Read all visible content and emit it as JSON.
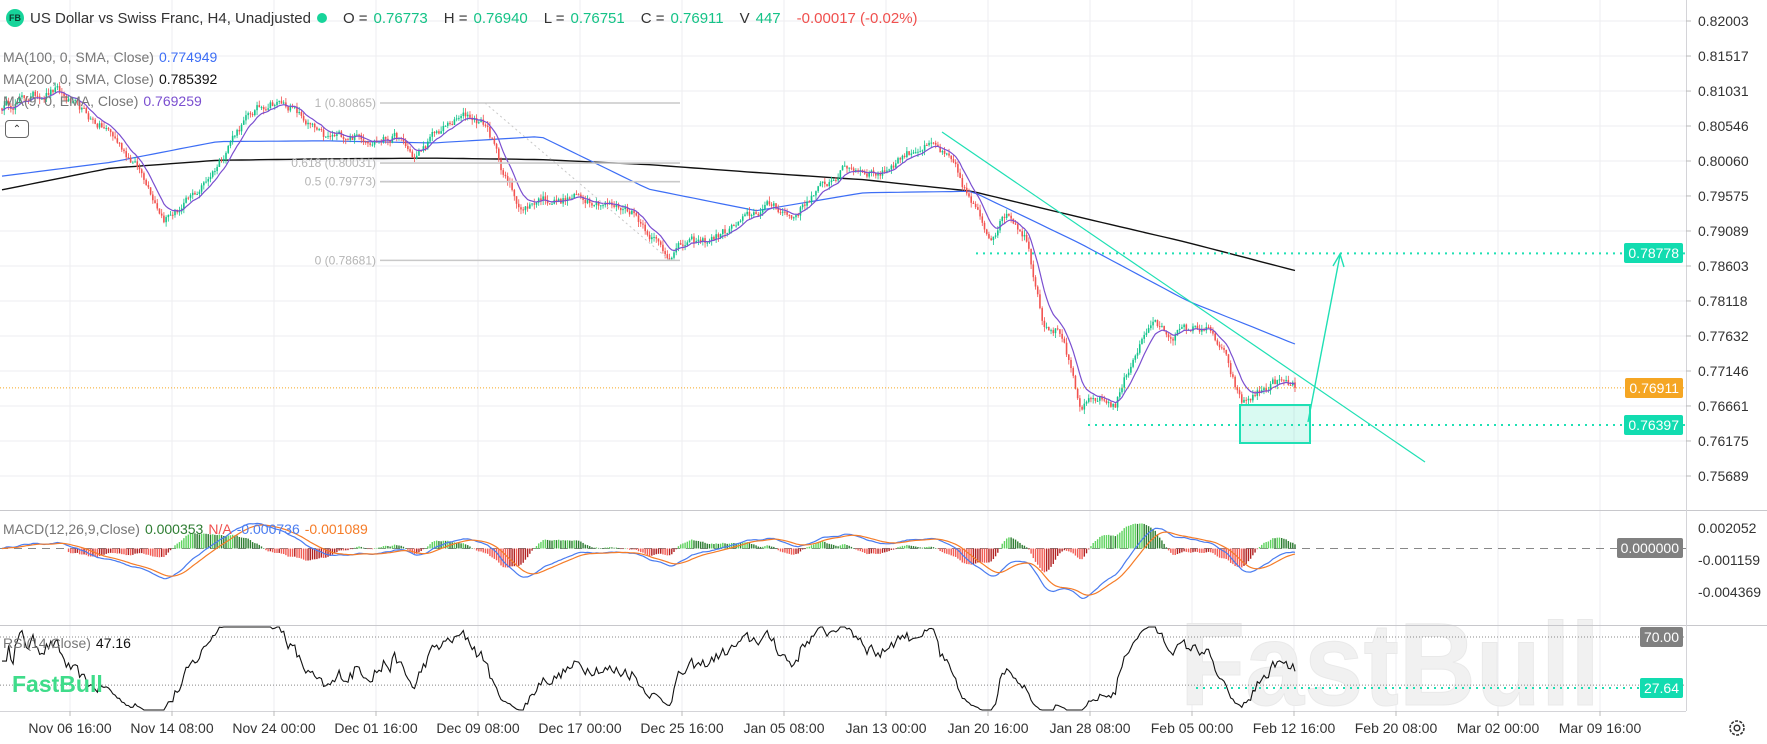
{
  "header": {
    "logo": "FB",
    "title": "US Dollar vs Swiss Franc, H4, Unadjusted",
    "open_label": "O =",
    "open": "0.76773",
    "high_label": "H =",
    "high": "0.76940",
    "low_label": "L =",
    "low": "0.76751",
    "close_label": "C =",
    "close": "0.76911",
    "volume_label": "V",
    "volume": "447",
    "change": "-0.00017 (-0.02%)"
  },
  "indicators": {
    "ma100": {
      "label": "MA(100, 0, SMA, Close)",
      "value": "0.774949",
      "color": "#3d6ef5"
    },
    "ma200": {
      "label": "MA(200, 0, SMA, Close)",
      "value": "0.785392",
      "color": "#111111"
    },
    "ema9": {
      "label": "MA(9, 0, EMA, Close)",
      "value": "0.769259",
      "color": "#7b4fd0"
    },
    "macd": {
      "label": "MACD(12,26,9,Close)",
      "hist": "0.000353",
      "na": "N/A",
      "macd": "-0.000736",
      "signal": "-0.001089"
    },
    "rsi": {
      "label": "RSI(14,Close)",
      "value": "47.16"
    }
  },
  "colors": {
    "up": "#12c48b",
    "down": "#f2524f",
    "annotation": "#1fe0b4",
    "last_price": "#f5a623",
    "macd_line": "#4a7cf0",
    "signal_line": "#f57c28"
  },
  "chart_data": {
    "type": "candlestick",
    "symbol": "USDCHF",
    "timeframe": "H4",
    "x_ticks": [
      "Nov 06 16:00",
      "Nov 14 08:00",
      "Nov 24 00:00",
      "Dec 01 16:00",
      "Dec 09 08:00",
      "Dec 17 00:00",
      "Dec 25 16:00",
      "Jan 05 08:00",
      "Jan 13 00:00",
      "Jan 20 16:00",
      "Jan 28 08:00",
      "Feb 05 00:00",
      "Feb 12 16:00",
      "Feb 20 08:00",
      "Mar 02 00:00",
      "Mar 09 16:00"
    ],
    "y_ticks": [
      "0.82003",
      "0.81517",
      "0.81031",
      "0.80546",
      "0.80060",
      "0.79575",
      "0.79089",
      "0.78603",
      "0.78118",
      "0.77632",
      "0.77146",
      "0.76661",
      "0.76175",
      "0.75689"
    ],
    "ylim": [
      0.7536,
      0.823
    ],
    "close_sampled": [
      0.8081,
      0.809,
      0.8098,
      0.8104,
      0.8083,
      0.8063,
      0.8046,
      0.8015,
      0.7981,
      0.7928,
      0.794,
      0.7966,
      0.8002,
      0.8047,
      0.8074,
      0.8089,
      0.8083,
      0.8058,
      0.8035,
      0.8042,
      0.804,
      0.8036,
      0.8039,
      0.8009,
      0.804,
      0.8058,
      0.807,
      0.8055,
      0.7984,
      0.7937,
      0.7956,
      0.795,
      0.7955,
      0.7954,
      0.7943,
      0.794,
      0.7909,
      0.7876,
      0.789,
      0.7893,
      0.7904,
      0.7918,
      0.7935,
      0.7946,
      0.7927,
      0.7956,
      0.7976,
      0.7998,
      0.7994,
      0.7989,
      0.8011,
      0.8025,
      0.8025,
      0.7998,
      0.7946,
      0.7901,
      0.7937,
      0.7903,
      0.7784,
      0.7769,
      0.766,
      0.7676,
      0.7668,
      0.7735,
      0.7782,
      0.7765,
      0.7772,
      0.7776,
      0.774,
      0.7669,
      0.7685,
      0.77,
      0.7691
    ],
    "ma100_sampled": [
      0.7985,
      0.8004,
      0.8033,
      0.8034,
      0.8031,
      0.804,
      0.7967,
      0.7937,
      0.7962,
      0.7964,
      0.7892,
      0.7812,
      0.7752
    ],
    "ma200_sampled": [
      0.7966,
      0.7996,
      0.8007,
      0.8009,
      0.801,
      0.8008,
      0.8001,
      0.799,
      0.798,
      0.7964,
      0.7928,
      0.7893,
      0.7854
    ],
    "last_price": 0.76911,
    "fibonacci": [
      {
        "label": "1 (0.80865)",
        "price": 0.80865
      },
      {
        "label": "0.618 (0.80031)",
        "price": 0.80031
      },
      {
        "label": "0.5 (0.79773)",
        "price": 0.79773
      },
      {
        "label": "0 (0.78681)",
        "price": 0.78681
      }
    ],
    "horizontal_levels": [
      {
        "label": "0.78778",
        "price": 0.78778
      },
      {
        "label": "0.76397",
        "price": 0.76397
      }
    ],
    "last_price_label": "0.76911",
    "macd_pane": {
      "y_ticks": [
        "0.002052",
        "-0.001159",
        "-0.004369"
      ],
      "zero_label": "0.000000",
      "ylim": [
        -0.00766,
        0.00377
      ]
    },
    "rsi_pane": {
      "level_high_label": "70.00",
      "level_high": 70,
      "level_low": 30,
      "marker_label": "27.64",
      "marker": 27.64,
      "ylim": [
        8.5,
        79
      ]
    }
  },
  "watermark": "FastBull",
  "logo_text": "FastBull"
}
